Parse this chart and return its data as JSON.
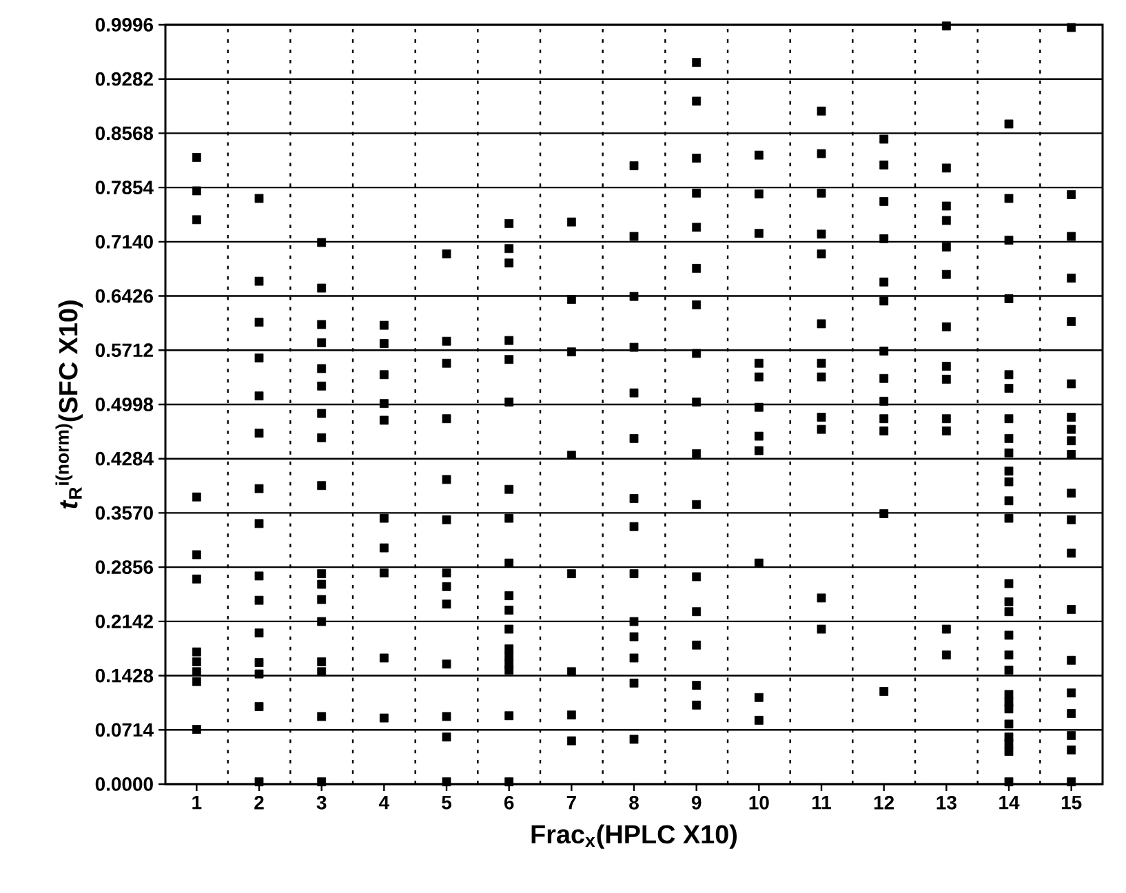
{
  "chart_data": {
    "type": "scatter",
    "xlabel": "Frac$_{x}$(HPLC  X10)",
    "ylabel": "*t*$_{R}$$^{i(norm)}$(SFC  X10)",
    "xlim": [
      0.5,
      15.5
    ],
    "xticks": [
      1,
      2,
      3,
      4,
      5,
      6,
      7,
      8,
      9,
      10,
      11,
      12,
      13,
      14,
      15
    ],
    "ylim": [
      0,
      0.9996
    ],
    "yticks": [
      {
        "value": 0,
        "label": "0.0000"
      },
      {
        "value": 0.0714,
        "label": "0.0714"
      },
      {
        "value": 0.1428,
        "label": "0.1428"
      },
      {
        "value": 0.2142,
        "label": "0.2142"
      },
      {
        "value": 0.2856,
        "label": "0.2856"
      },
      {
        "value": 0.357,
        "label": "0.3570"
      },
      {
        "value": 0.4284,
        "label": "0.4284"
      },
      {
        "value": 0.4998,
        "label": "0.4998"
      },
      {
        "value": 0.5712,
        "label": "0.5712"
      },
      {
        "value": 0.6426,
        "label": "0.6426"
      },
      {
        "value": 0.714,
        "label": "0.7140"
      },
      {
        "value": 0.7854,
        "label": "0.7854"
      },
      {
        "value": 0.8568,
        "label": "0.8568"
      },
      {
        "value": 0.9282,
        "label": "0.9282"
      },
      {
        "value": 0.9996,
        "label": "0.9996"
      }
    ],
    "grid": "y",
    "marker": "square",
    "ref_lines": [
      {
        "axis": "x",
        "value": 1.5,
        "line_style": "dotted"
      },
      {
        "axis": "x",
        "value": 2.5,
        "line_style": "dotted"
      },
      {
        "axis": "x",
        "value": 3.5,
        "line_style": "dotted"
      },
      {
        "axis": "x",
        "value": 4.5,
        "line_style": "dotted"
      },
      {
        "axis": "x",
        "value": 5.5,
        "line_style": "dotted"
      },
      {
        "axis": "x",
        "value": 6.5,
        "line_style": "dotted"
      },
      {
        "axis": "x",
        "value": 7.5,
        "line_style": "dotted"
      },
      {
        "axis": "x",
        "value": 8.5,
        "line_style": "dotted"
      },
      {
        "axis": "x",
        "value": 9.5,
        "line_style": "dotted"
      },
      {
        "axis": "x",
        "value": 10.5,
        "line_style": "dotted"
      },
      {
        "axis": "x",
        "value": 11.5,
        "line_style": "dotted"
      },
      {
        "axis": "x",
        "value": 12.5,
        "line_style": "dotted"
      },
      {
        "axis": "x",
        "value": 13.5,
        "line_style": "dotted"
      },
      {
        "axis": "x",
        "value": 14.5,
        "line_style": "dotted"
      }
    ],
    "series": [
      {
        "color": "#000000",
        "x": [
          1,
          1,
          1,
          1,
          1,
          1,
          1,
          1,
          1,
          1,
          1
        ],
        "values": [
          0.825,
          0.781,
          0.743,
          0.378,
          0.302,
          0.27,
          0.174,
          0.161,
          0.148,
          0.135,
          0.072
        ]
      },
      {
        "color": "#000000",
        "x": [
          2,
          2,
          2,
          2,
          2,
          2,
          2,
          2,
          2,
          2,
          2,
          2,
          2,
          2,
          2
        ],
        "values": [
          0.771,
          0.662,
          0.608,
          0.561,
          0.511,
          0.462,
          0.389,
          0.343,
          0.274,
          0.242,
          0.199,
          0.16,
          0.145,
          0.102,
          0.003
        ]
      },
      {
        "color": "#000000",
        "x": [
          3,
          3,
          3,
          3,
          3,
          3,
          3,
          3,
          3,
          3,
          3,
          3,
          3,
          3,
          3,
          3,
          3
        ],
        "values": [
          0.713,
          0.653,
          0.605,
          0.581,
          0.547,
          0.524,
          0.488,
          0.456,
          0.393,
          0.277,
          0.263,
          0.243,
          0.214,
          0.161,
          0.148,
          0.089,
          0.003
        ]
      },
      {
        "color": "#000000",
        "x": [
          4,
          4,
          4,
          4,
          4,
          4,
          4,
          4,
          4,
          4
        ],
        "values": [
          0.604,
          0.58,
          0.539,
          0.501,
          0.479,
          0.35,
          0.311,
          0.278,
          0.166,
          0.087
        ]
      },
      {
        "color": "#000000",
        "x": [
          5,
          5,
          5,
          5,
          5,
          5,
          5,
          5,
          5,
          5,
          5,
          5,
          5
        ],
        "values": [
          0.698,
          0.583,
          0.554,
          0.481,
          0.401,
          0.348,
          0.278,
          0.26,
          0.237,
          0.158,
          0.089,
          0.062,
          0.003
        ]
      },
      {
        "color": "#000000",
        "x": [
          6,
          6,
          6,
          6,
          6,
          6,
          6,
          6,
          6,
          6,
          6,
          6,
          6,
          6,
          6,
          6,
          6,
          6
        ],
        "values": [
          0.738,
          0.705,
          0.686,
          0.584,
          0.559,
          0.503,
          0.388,
          0.35,
          0.291,
          0.248,
          0.229,
          0.204,
          0.178,
          0.168,
          0.158,
          0.15,
          0.09,
          0.003
        ]
      },
      {
        "color": "#000000",
        "x": [
          7,
          7,
          7,
          7,
          7,
          7,
          7,
          7
        ],
        "values": [
          0.74,
          0.638,
          0.569,
          0.433,
          0.277,
          0.148,
          0.091,
          0.057
        ]
      },
      {
        "color": "#000000",
        "x": [
          8,
          8,
          8,
          8,
          8,
          8,
          8,
          8,
          8,
          8,
          8,
          8,
          8,
          8
        ],
        "values": [
          0.814,
          0.721,
          0.642,
          0.575,
          0.515,
          0.455,
          0.376,
          0.339,
          0.277,
          0.214,
          0.194,
          0.166,
          0.133,
          0.059
        ]
      },
      {
        "color": "#000000",
        "x": [
          9,
          9,
          9,
          9,
          9,
          9,
          9,
          9,
          9,
          9,
          9,
          9,
          9,
          9,
          9,
          9
        ],
        "values": [
          0.95,
          0.899,
          0.824,
          0.778,
          0.733,
          0.679,
          0.631,
          0.567,
          0.503,
          0.435,
          0.368,
          0.273,
          0.227,
          0.183,
          0.13,
          0.104
        ]
      },
      {
        "color": "#000000",
        "x": [
          10,
          10,
          10,
          10,
          10,
          10,
          10,
          10,
          10,
          10,
          10
        ],
        "values": [
          0.828,
          0.777,
          0.725,
          0.554,
          0.536,
          0.496,
          0.458,
          0.439,
          0.291,
          0.114,
          0.084
        ]
      },
      {
        "color": "#000000",
        "x": [
          11,
          11,
          11,
          11,
          11,
          11,
          11,
          11,
          11,
          11,
          11,
          11
        ],
        "values": [
          0.886,
          0.83,
          0.778,
          0.724,
          0.698,
          0.606,
          0.554,
          0.536,
          0.483,
          0.467,
          0.245,
          0.204
        ]
      },
      {
        "color": "#000000",
        "x": [
          12,
          12,
          12,
          12,
          12,
          12,
          12,
          12,
          12,
          12,
          12,
          12,
          12
        ],
        "values": [
          0.849,
          0.815,
          0.767,
          0.718,
          0.661,
          0.636,
          0.57,
          0.534,
          0.504,
          0.481,
          0.465,
          0.356,
          0.122
        ]
      },
      {
        "color": "#000000",
        "x": [
          13,
          13,
          13,
          13,
          13,
          13,
          13,
          13,
          13,
          13,
          13,
          13,
          13
        ],
        "values": [
          0.998,
          0.811,
          0.761,
          0.742,
          0.707,
          0.671,
          0.602,
          0.55,
          0.533,
          0.481,
          0.465,
          0.204,
          0.17
        ]
      },
      {
        "color": "#000000",
        "x": [
          14,
          14,
          14,
          14,
          14,
          14,
          14,
          14,
          14,
          14,
          14,
          14,
          14,
          14,
          14,
          14,
          14,
          14,
          14,
          14,
          14,
          14,
          14,
          14,
          14,
          14,
          14
        ],
        "values": [
          0.869,
          0.771,
          0.716,
          0.639,
          0.539,
          0.521,
          0.481,
          0.455,
          0.436,
          0.412,
          0.398,
          0.373,
          0.35,
          0.264,
          0.24,
          0.227,
          0.196,
          0.17,
          0.15,
          0.118,
          0.108,
          0.099,
          0.079,
          0.062,
          0.053,
          0.043,
          0.003
        ]
      },
      {
        "color": "#000000",
        "x": [
          15,
          15,
          15,
          15,
          15,
          15,
          15,
          15,
          15,
          15,
          15,
          15,
          15,
          15,
          15,
          15,
          15,
          15,
          15,
          15
        ],
        "values": [
          0.996,
          0.776,
          0.721,
          0.666,
          0.609,
          0.527,
          0.483,
          0.467,
          0.452,
          0.434,
          0.383,
          0.348,
          0.304,
          0.23,
          0.163,
          0.12,
          0.093,
          0.064,
          0.045,
          0.003
        ]
      }
    ]
  }
}
